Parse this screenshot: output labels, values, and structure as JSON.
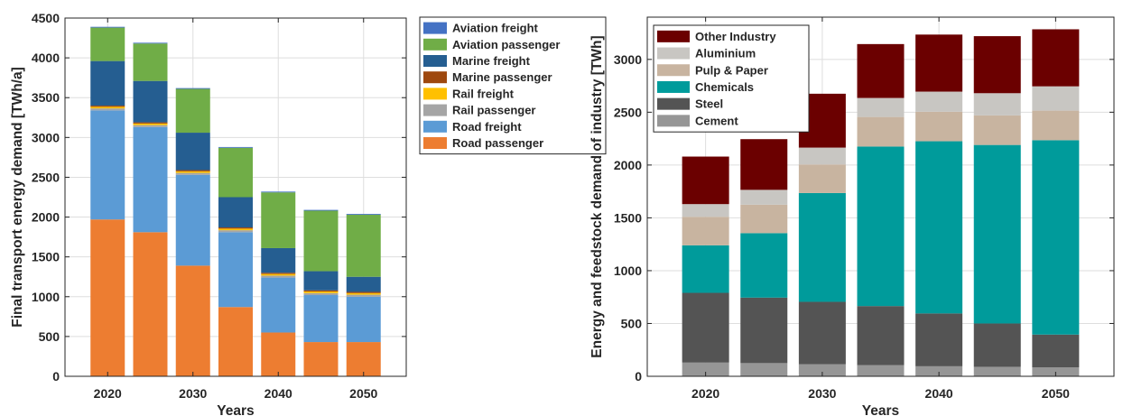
{
  "chart_data": [
    {
      "type": "bar",
      "stacked": true,
      "xlabel": "Years",
      "ylabel": "Final transport energy demand [TWh/a]",
      "ylim": [
        0,
        4500
      ],
      "yticks": [
        0,
        500,
        1000,
        1500,
        2000,
        2500,
        3000,
        3500,
        4000,
        4500
      ],
      "x": [
        2020,
        2025,
        2030,
        2035,
        2040,
        2045,
        2050
      ],
      "xticks": [
        2020,
        2030,
        2040,
        2050
      ],
      "xlim": [
        2015,
        2055
      ],
      "grid": true,
      "legend_placement": "outside-right",
      "series": [
        {
          "name": "Road passenger",
          "color": "#ED7D31",
          "values": [
            1970,
            1810,
            1390,
            870,
            550,
            430,
            430
          ]
        },
        {
          "name": "Road freight",
          "color": "#5B9BD5",
          "values": [
            1370,
            1320,
            1140,
            940,
            690,
            590,
            570
          ]
        },
        {
          "name": "Rail passenger",
          "color": "#A5A5A5",
          "values": [
            25,
            25,
            25,
            25,
            25,
            25,
            25
          ]
        },
        {
          "name": "Rail freight",
          "color": "#FFC000",
          "values": [
            20,
            20,
            20,
            20,
            20,
            20,
            20
          ]
        },
        {
          "name": "Marine passenger",
          "color": "#9E480E",
          "values": [
            15,
            15,
            15,
            15,
            15,
            15,
            15
          ]
        },
        {
          "name": "Marine freight",
          "color": "#255E91",
          "values": [
            560,
            520,
            470,
            380,
            310,
            240,
            190
          ]
        },
        {
          "name": "Aviation passenger",
          "color": "#70AD47",
          "values": [
            420,
            470,
            550,
            620,
            700,
            760,
            780
          ]
        },
        {
          "name": "Aviation freight",
          "color": "#4472C4",
          "values": [
            10,
            10,
            10,
            10,
            10,
            10,
            10
          ]
        }
      ]
    },
    {
      "type": "bar",
      "stacked": true,
      "xlabel": "Years",
      "ylabel": "Energy and feedstock demand of industry [TWh]",
      "ylim": [
        0,
        3400
      ],
      "yticks": [
        0,
        500,
        1000,
        1500,
        2000,
        2500,
        3000
      ],
      "x": [
        2020,
        2025,
        2030,
        2035,
        2040,
        2045,
        2050
      ],
      "xticks": [
        2020,
        2030,
        2040,
        2050
      ],
      "xlim": [
        2015,
        2055
      ],
      "grid": true,
      "legend_placement": "top-left",
      "series": [
        {
          "name": "Cement",
          "color": "#969696",
          "values": [
            130,
            125,
            115,
            105,
            95,
            90,
            85
          ]
        },
        {
          "name": "Steel",
          "color": "#545454",
          "values": [
            660,
            620,
            590,
            560,
            500,
            410,
            310
          ]
        },
        {
          "name": "Chemicals",
          "color": "#009B9B",
          "values": [
            450,
            610,
            1030,
            1510,
            1630,
            1690,
            1840
          ]
        },
        {
          "name": "Pulp & Paper",
          "color": "#C8B4A0",
          "values": [
            270,
            270,
            270,
            280,
            280,
            280,
            280
          ]
        },
        {
          "name": "Aluminium",
          "color": "#C8C6C2",
          "values": [
            120,
            140,
            160,
            180,
            190,
            210,
            230
          ]
        },
        {
          "name": "Other Industry",
          "color": "#6B0000",
          "values": [
            450,
            480,
            510,
            510,
            540,
            540,
            540
          ]
        }
      ]
    }
  ]
}
